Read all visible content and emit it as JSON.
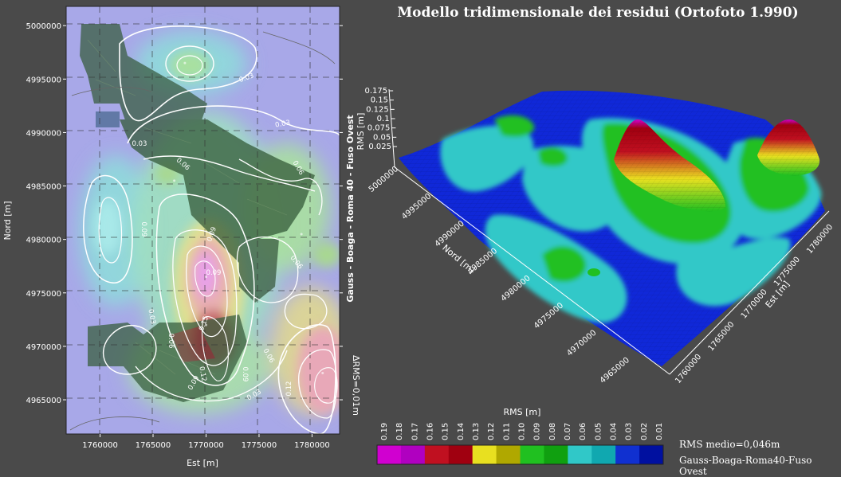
{
  "chart_data": [
    {
      "type": "heatmap",
      "name": "contour-map-2d",
      "title": "",
      "xlabel": "Est [m]",
      "ylabel": "Nord [m]",
      "side_label": "Gauss - Boaga - Roma 40 - Fuso Ovest",
      "delta_label": "ΔRMS=0,01m",
      "x_ticks": [
        "1760000",
        "1765000",
        "1770000",
        "1775000",
        "1780000"
      ],
      "x_tick_values": [
        1760000,
        1765000,
        1770000,
        1775000,
        1780000
      ],
      "y_ticks": [
        "5000000",
        "4995000",
        "4990000",
        "4985000",
        "4980000",
        "4975000",
        "4970000",
        "4965000"
      ],
      "y_tick_values": [
        5000000,
        4995000,
        4990000,
        4985000,
        4980000,
        4975000,
        4970000,
        4965000
      ],
      "xlim": [
        1756800,
        1782600
      ],
      "ylim": [
        4961800,
        5001800
      ],
      "grid": true,
      "contour_labels": [
        "0.03",
        "0.03",
        "0.03",
        "0.06",
        "0.06",
        "0.09",
        "0.06",
        "0.03",
        "0.06",
        "0.09",
        "0.15",
        "0.12",
        "0.09",
        "0.03",
        "0.09",
        "0.12",
        "0.06",
        "0.09"
      ],
      "peaks": [
        {
          "x": 1770000,
          "y": 4976500,
          "value": 0.19
        },
        {
          "x": 1770000,
          "y": 4972000,
          "value": 0.16
        },
        {
          "x": 1781000,
          "y": 4967500,
          "value": 0.17
        },
        {
          "x": 1768000,
          "y": 4996500,
          "value": 0.09
        },
        {
          "x": 1760000,
          "y": 4978500,
          "value": 0.08
        },
        {
          "x": 1779000,
          "y": 4980500,
          "value": 0.06
        },
        {
          "x": 1767000,
          "y": 4985500,
          "value": 0.08
        }
      ]
    },
    {
      "type": "surface3d",
      "name": "residual-surface-3d",
      "title": "Modello tridimensionale dei residui (Ortofoto 1.990)",
      "zlabel": "RMS [m]",
      "ylabel": "Nord [m]",
      "xlabel": "Est [m]",
      "z_ticks": [
        "0.175",
        "0.15",
        "0.125",
        "0.1",
        "0.075",
        "0.05",
        "0.025"
      ],
      "z_tick_values": [
        0.175,
        0.15,
        0.125,
        0.1,
        0.075,
        0.05,
        0.025
      ],
      "y_ticks": [
        "5000000",
        "4995000",
        "4990000",
        "4985000",
        "4980000",
        "4975000",
        "4970000",
        "4965000"
      ],
      "x_ticks": [
        "1760000",
        "1765000",
        "1770000",
        "1775000",
        "1780000"
      ]
    }
  ],
  "colorbar": {
    "title": "RMS [m]",
    "labels": [
      "0.19",
      "0.18",
      "0.17",
      "0.16",
      "0.15",
      "0.14",
      "0.13",
      "0.12",
      "0.11",
      "0.10",
      "0.09",
      "0.08",
      "0.07",
      "0.06",
      "0.05",
      "0.04",
      "0.03",
      "0.02",
      "0.01"
    ],
    "colors": [
      "#d000d0",
      "#b000c0",
      "#c01020",
      "#a00010",
      "#e8e020",
      "#b0a800",
      "#20c020",
      "#10a010",
      "#30c8c8",
      "#10a8b0",
      "#1030d0",
      "#0010a0"
    ]
  },
  "notes": {
    "rms_mean": "RMS medio=0,046m",
    "datum": "Gauss-Boaga-Roma40-Fuso Ovest"
  },
  "colors": {
    "background": "#4a4a4a",
    "map_base": "#a8a8e8",
    "surface_blue": "#1028d8",
    "surface_cyan": "#30c8c8",
    "surface_green": "#20c020",
    "surface_yellow": "#e8e020",
    "surface_red": "#c01020",
    "surface_magenta": "#d000d0"
  }
}
